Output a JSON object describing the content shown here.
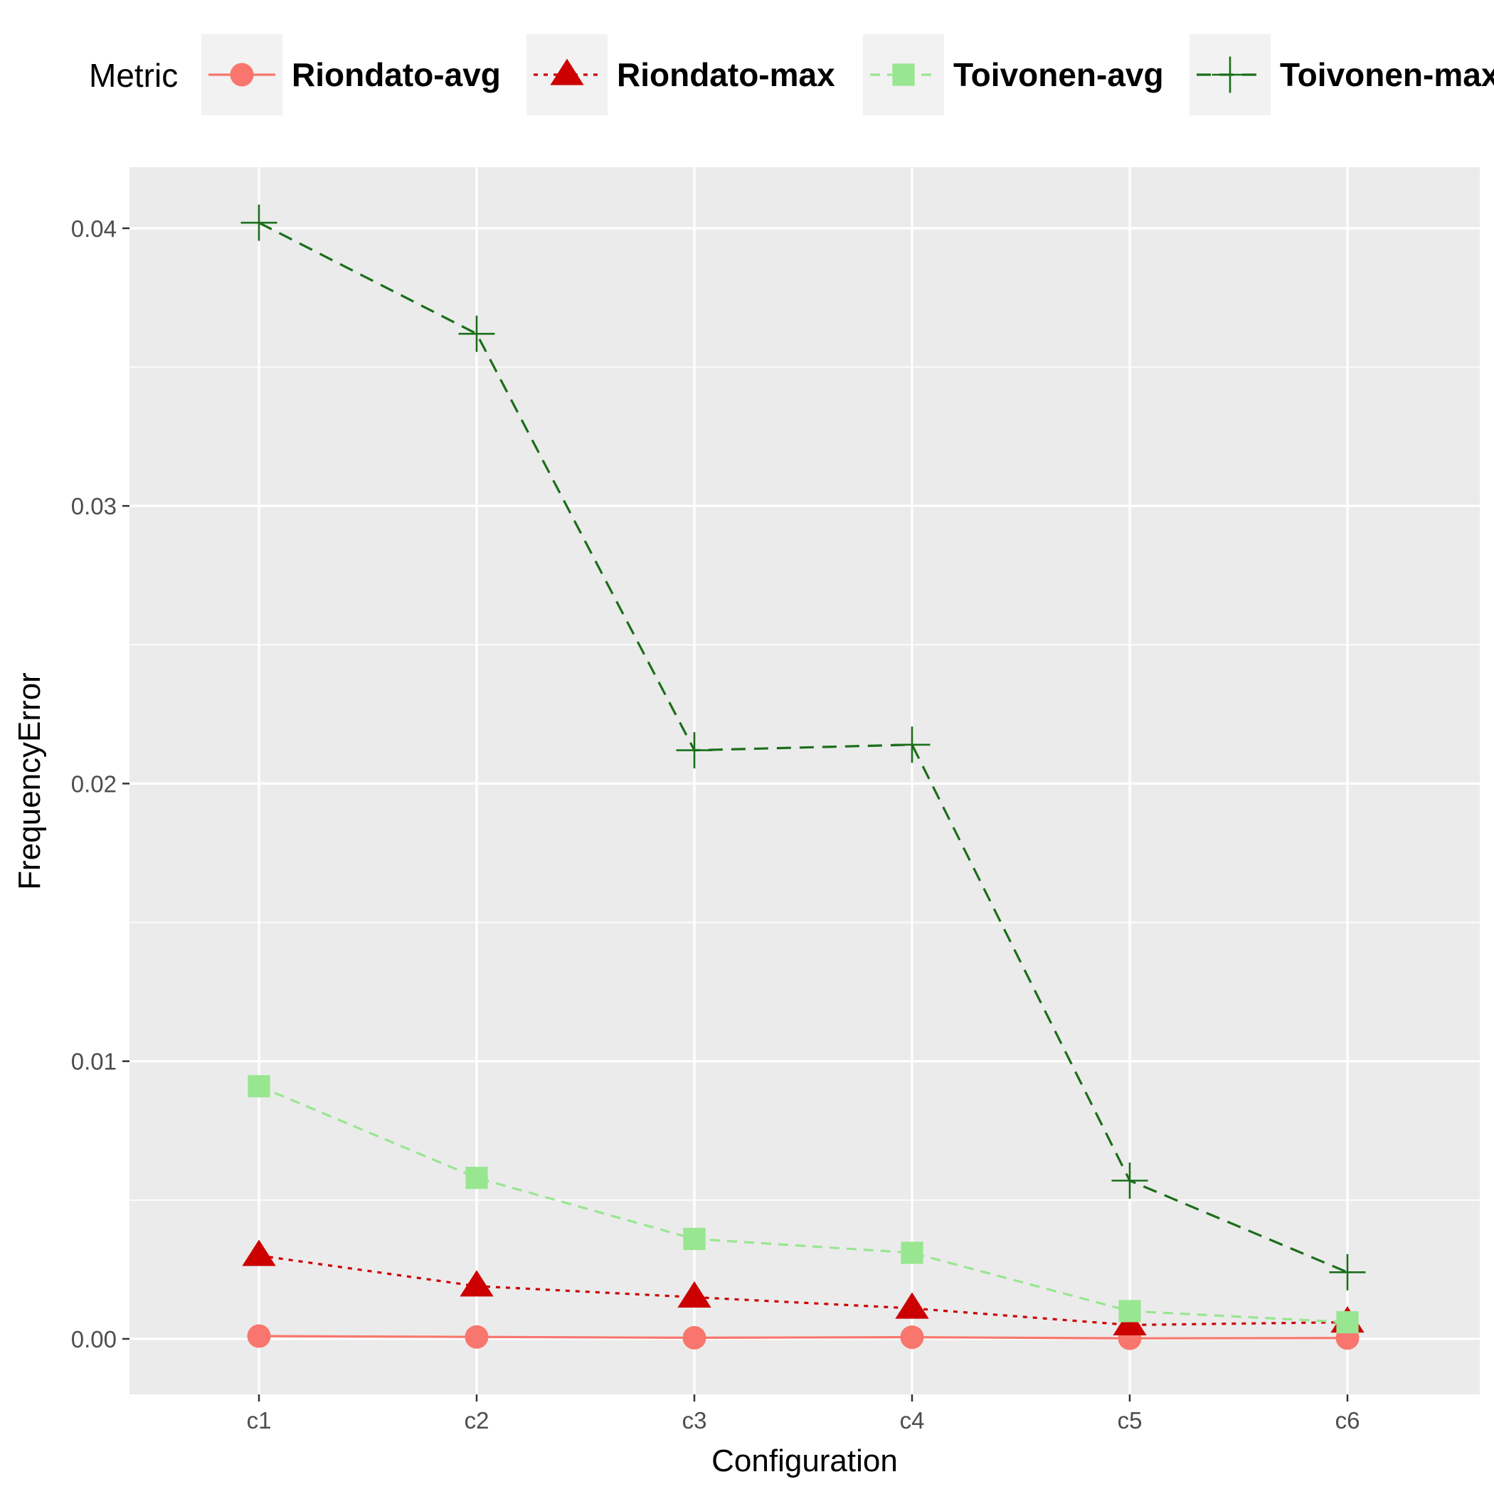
{
  "chart_data": {
    "type": "line",
    "categories": [
      "c1",
      "c2",
      "c3",
      "c4",
      "c5",
      "c6"
    ],
    "xlabel": "Configuration",
    "ylabel": "FrequencyError",
    "ylim": [
      -0.002,
      0.0422
    ],
    "yticks": [
      0.0,
      0.01,
      0.02,
      0.03,
      0.04
    ],
    "ytick_labels": [
      "0.00",
      "0.01",
      "0.02",
      "0.03",
      "0.04"
    ],
    "grid": true,
    "legend": {
      "position": "top",
      "title": "Metric"
    },
    "series": [
      {
        "name": "Riondato-avg",
        "color": "#f8766d",
        "marker": "circle",
        "line": "solid",
        "values": [
          0.0001,
          7e-05,
          4e-05,
          6e-05,
          2e-05,
          3e-05
        ]
      },
      {
        "name": "Riondato-max",
        "color": "#cc0000",
        "marker": "triangle",
        "line": "dotted",
        "values": [
          0.003,
          0.0019,
          0.0015,
          0.0011,
          0.0005,
          0.0006
        ]
      },
      {
        "name": "Toivonen-avg",
        "color": "#98e690",
        "marker": "square",
        "line": "dashed",
        "values": [
          0.0091,
          0.0058,
          0.0036,
          0.0031,
          0.001,
          0.0006
        ]
      },
      {
        "name": "Toivonen-max",
        "color": "#1a6e1a",
        "marker": "plus",
        "line": "longdash",
        "values": [
          0.0402,
          0.0362,
          0.0212,
          0.0214,
          0.0057,
          0.0024
        ]
      }
    ]
  }
}
